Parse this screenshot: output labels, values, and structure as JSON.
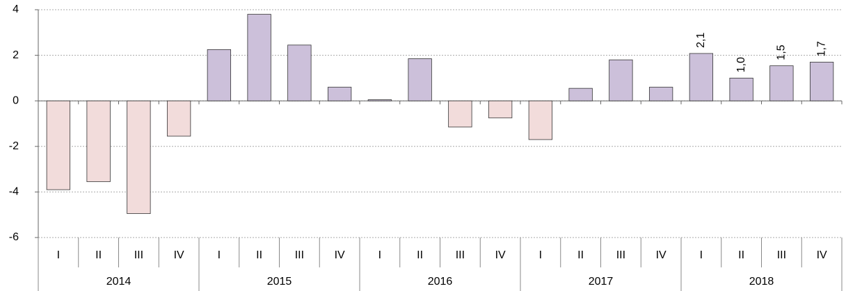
{
  "chart_data": {
    "type": "bar",
    "categories": [
      "I",
      "II",
      "III",
      "IV",
      "I",
      "II",
      "III",
      "IV",
      "I",
      "II",
      "III",
      "IV",
      "I",
      "II",
      "III",
      "IV",
      "I",
      "II",
      "III",
      "IV"
    ],
    "groups": [
      "2014",
      "2015",
      "2016",
      "2017",
      "2018"
    ],
    "values": [
      -3.9,
      -3.55,
      -4.95,
      -1.55,
      2.25,
      3.8,
      2.45,
      0.6,
      0.05,
      1.85,
      -1.15,
      -0.75,
      -1.7,
      0.55,
      1.8,
      0.6,
      2.08,
      1.0,
      1.54,
      1.7
    ],
    "value_labels": [
      null,
      null,
      null,
      null,
      null,
      null,
      null,
      null,
      null,
      null,
      null,
      null,
      null,
      null,
      null,
      null,
      "2,1",
      "1,0",
      "1,5",
      "1,7"
    ],
    "color_positive": "#ccc0da",
    "color_negative": "#f2dcdb",
    "ylim": [
      -6,
      4
    ],
    "yticks": [
      -6,
      -4,
      -2,
      0,
      2,
      4
    ],
    "grid": true
  }
}
